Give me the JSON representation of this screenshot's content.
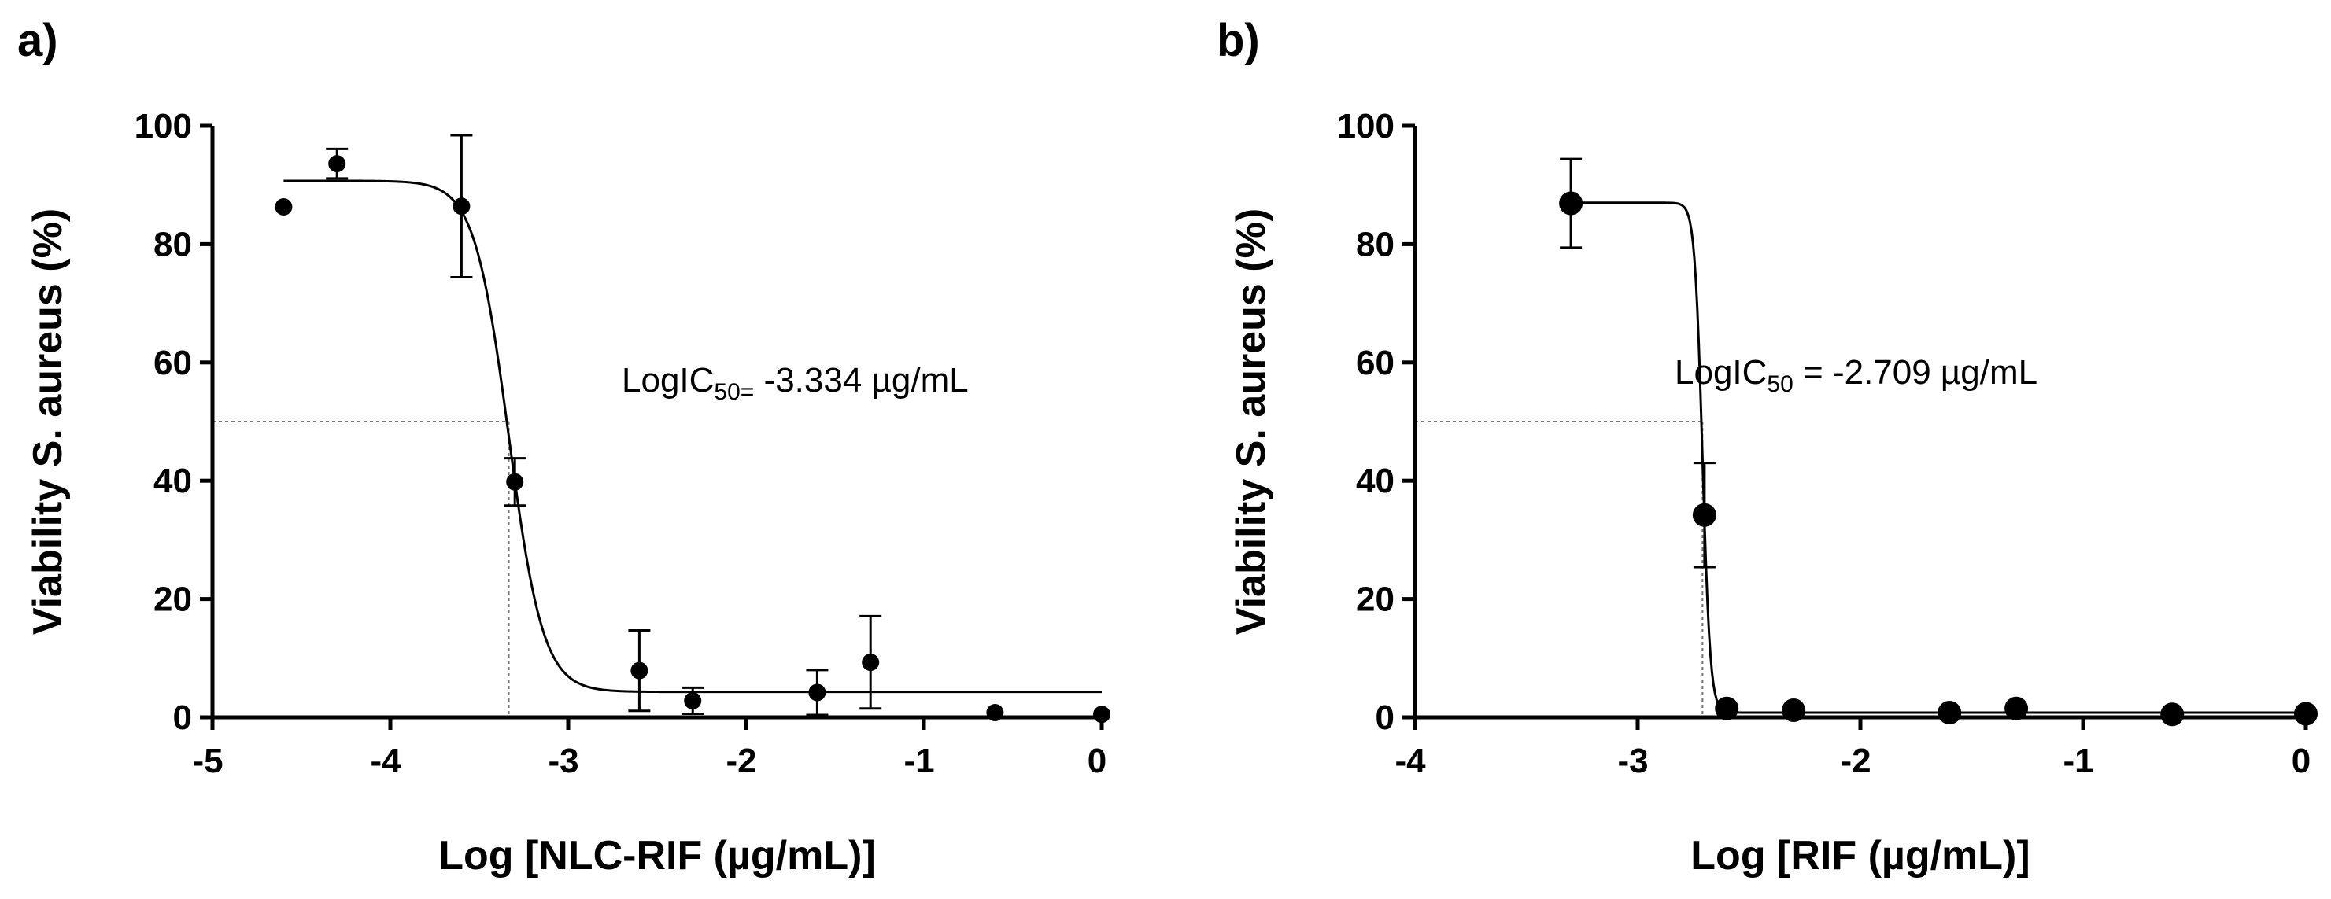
{
  "chart_data": [
    {
      "type": "scatter",
      "panel_label": "a)",
      "xlabel": "Log [NLC-RIF (µg/mL)]",
      "ylabel": "Viability S. aureus (%)",
      "xlim": [
        -5,
        0
      ],
      "ylim": [
        0,
        100
      ],
      "xticks": [
        "-5",
        "-4",
        "-3",
        "-2",
        "-1",
        "0"
      ],
      "yticks": [
        "0",
        "20",
        "40",
        "60",
        "80",
        "100"
      ],
      "annotation": {
        "main": "LogIC",
        "sub": "50=",
        "rest": " -3.334 µg/mL"
      },
      "points": [
        {
          "x": -4.6,
          "y": 86.3,
          "err": 0
        },
        {
          "x": -4.3,
          "y": 93.6,
          "err": 2.5
        },
        {
          "x": -3.6,
          "y": 86.4,
          "err": 12
        },
        {
          "x": -3.3,
          "y": 39.8,
          "err": 4
        },
        {
          "x": -2.6,
          "y": 7.9,
          "err": 6.8
        },
        {
          "x": -2.3,
          "y": 2.8,
          "err": 2.2
        },
        {
          "x": -1.6,
          "y": 4.2,
          "err": 3.8
        },
        {
          "x": -1.3,
          "y": 9.3,
          "err": 7.8
        },
        {
          "x": -0.6,
          "y": 0.8,
          "err": 0
        },
        {
          "x": 0,
          "y": 0.5,
          "err": 0
        }
      ],
      "fit": {
        "top": 90.7,
        "bottom": 4.3,
        "logIC50": -3.334,
        "hill": -4.5,
        "xrange": [
          -4.6,
          0
        ]
      },
      "ic50_guide": {
        "x": -3.334,
        "y": 50
      },
      "marker_radius": 11
    },
    {
      "type": "scatter",
      "panel_label": "b)",
      "xlabel": "Log [RIF (µg/mL)]",
      "ylabel": "Viability S. aureus (%)",
      "xlim": [
        -4,
        0
      ],
      "ylim": [
        0,
        100
      ],
      "xticks": [
        "-4",
        "-3",
        "-2",
        "-1",
        "0"
      ],
      "yticks": [
        "0",
        "20",
        "40",
        "60",
        "80",
        "100"
      ],
      "annotation": {
        "main": "LogIC",
        "sub": "50",
        "rest": " = -2.709 µg/mL"
      },
      "points": [
        {
          "x": -3.3,
          "y": 86.9,
          "err": 7.5
        },
        {
          "x": -2.7,
          "y": 34.2,
          "err": 8.8
        },
        {
          "x": -2.6,
          "y": 1.5,
          "err": 0
        },
        {
          "x": -2.3,
          "y": 1.2,
          "err": 0
        },
        {
          "x": -1.6,
          "y": 0.8,
          "err": 0
        },
        {
          "x": -1.3,
          "y": 1.5,
          "err": 0
        },
        {
          "x": -0.6,
          "y": 0.5,
          "err": 0
        },
        {
          "x": 0,
          "y": 0.6,
          "err": 0
        }
      ],
      "fit": {
        "top": 87,
        "bottom": 0.8,
        "logIC50": -2.709,
        "hill": -25,
        "xrange": [
          -3.3,
          0
        ]
      },
      "ic50_guide": {
        "x": -2.709,
        "y": 50
      },
      "marker_radius": 15
    }
  ]
}
